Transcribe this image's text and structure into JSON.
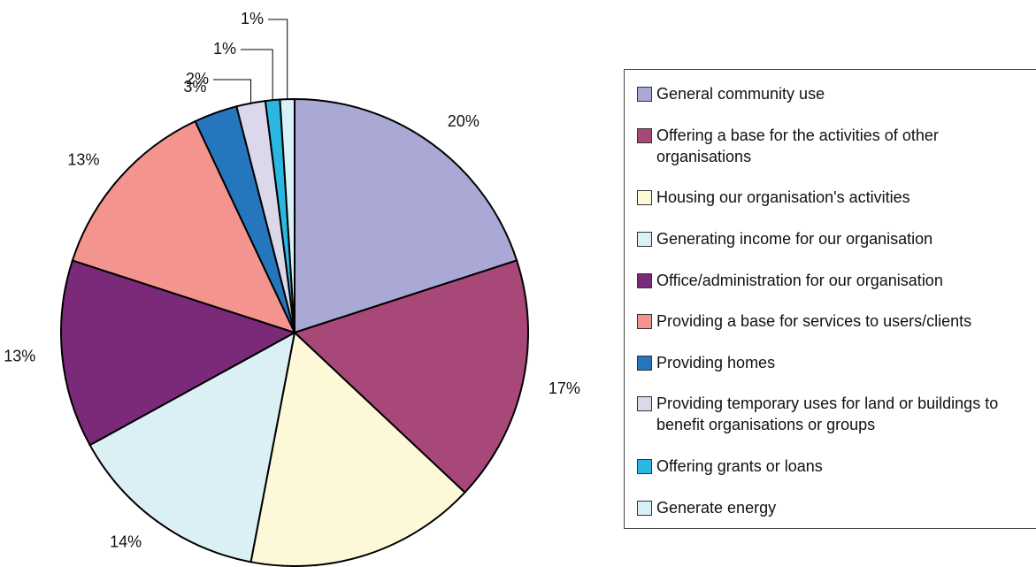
{
  "chart_data": {
    "type": "pie",
    "categories": [
      "General community use",
      "Offering a base for the activities of other organisations",
      "Housing our organisation's activities",
      "Generating income for our organisation",
      "Office/administration for our organisation",
      "Providing a base for services to users/clients",
      "Providing homes",
      "Providing temporary uses for land or buildings to benefit organisations or groups",
      "Offering grants or loans",
      "Generate energy"
    ],
    "values": [
      20,
      17,
      16,
      14,
      13,
      13,
      3,
      2,
      1,
      1
    ],
    "value_labels": [
      "20%",
      "17%",
      "16%",
      "14%",
      "13%",
      "13%",
      "3%",
      "2%",
      "1%",
      "1%"
    ],
    "colors": [
      "#aaa8d4",
      "#a84878",
      "#fdf9d8",
      "#daf0f5",
      "#7a2a78",
      "#f4948f",
      "#2676bd",
      "#dcd8ec",
      "#2cb7e0",
      "#d8f0f8"
    ],
    "legend": "right"
  }
}
